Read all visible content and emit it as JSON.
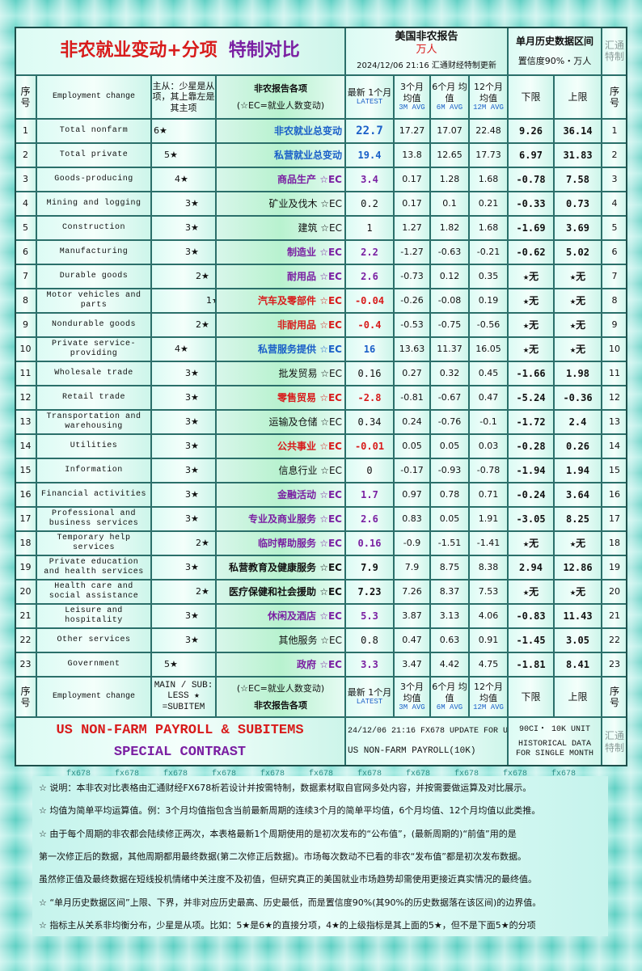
{
  "header": {
    "title_main": "非农就业变动+分项",
    "title_accent": "特制对比",
    "report_title": "美国非农报告",
    "report_unit": "万人",
    "timestamp": "2024/12/06 21:16 汇通财经特制更新",
    "range_title": "单月历史数据区间",
    "range_subtitle": "置信度90%・万人",
    "side_label": "汇通特制"
  },
  "columns": {
    "no": "序号",
    "en": "Employment change",
    "stars": "主从：少星是从项，其上靠左是其主项",
    "stars_footer": "MAIN / SUB: LESS ★ =SUBITEM",
    "zh": "非农报告各项",
    "zh_note": "(☆EC=就业人数变动)",
    "latest": "最新 1个月",
    "latest_en": "LATEST",
    "m3": "3个月 均值",
    "m3_en": "3M AVG",
    "m6": "6个月 均值",
    "m6_en": "6M AVG",
    "m12": "12个月 均值",
    "m12_en": "12M AVG",
    "low": "下限",
    "high": "上限"
  },
  "rows": [
    {
      "no": 1,
      "en": "Total nonfarm",
      "stars": "6★",
      "zh": "非农就业总变动",
      "latest": 22.7,
      "m3": 17.27,
      "m6": 17.07,
      "m12": 22.48,
      "low": 9.26,
      "high": 36.14,
      "style": "blue"
    },
    {
      "no": 2,
      "en": "Total private",
      "stars": "5★",
      "zh": "私营就业总变动",
      "latest": 19.4,
      "m3": 13.8,
      "m6": 12.65,
      "m12": 17.73,
      "low": 6.97,
      "high": 31.83,
      "style": "blue"
    },
    {
      "no": 3,
      "en": "Goods-producing",
      "stars": "4★",
      "zh": "商品生产 ☆EC",
      "latest": 3.4,
      "m3": 0.17,
      "m6": 1.28,
      "m12": 1.68,
      "low": -0.78,
      "high": 7.58,
      "style": "purple"
    },
    {
      "no": 4,
      "en": "Mining and logging",
      "stars": "3★",
      "zh": "矿业及伐木 ☆EC",
      "latest": 0.2,
      "m3": 0.17,
      "m6": 0.1,
      "m12": 0.21,
      "low": -0.33,
      "high": 0.73,
      "style": "plain"
    },
    {
      "no": 5,
      "en": "Construction",
      "stars": "3★",
      "zh": "建筑 ☆EC",
      "latest": 1,
      "m3": 1.27,
      "m6": 1.82,
      "m12": 1.68,
      "low": -1.69,
      "high": 3.69,
      "style": "plain"
    },
    {
      "no": 6,
      "en": "Manufacturing",
      "stars": "3★",
      "zh": "制造业 ☆EC",
      "latest": 2.2,
      "m3": -1.27,
      "m6": -0.63,
      "m12": -0.21,
      "low": -0.62,
      "high": 5.02,
      "style": "purple"
    },
    {
      "no": 7,
      "en": "Durable goods",
      "stars": "2★",
      "zh": "耐用品 ☆EC",
      "latest": 2.6,
      "m3": -0.73,
      "m6": 0.12,
      "m12": 0.35,
      "low": "★无",
      "high": "★无",
      "style": "purple"
    },
    {
      "no": 8,
      "en": "Motor vehicles and parts",
      "stars": "1★",
      "zh": "汽车及零部件 ☆EC",
      "latest": -0.04,
      "m3": -0.26,
      "m6": -0.08,
      "m12": 0.19,
      "low": "★无",
      "high": "★无",
      "style": "red"
    },
    {
      "no": 9,
      "en": "Nondurable goods",
      "stars": "2★",
      "zh": "非耐用品 ☆EC",
      "latest": -0.4,
      "m3": -0.53,
      "m6": -0.75,
      "m12": -0.56,
      "low": "★无",
      "high": "★无",
      "style": "red"
    },
    {
      "no": 10,
      "en": "Private service-providing",
      "stars": "4★",
      "zh": "私营服务提供 ☆EC",
      "latest": 16,
      "m3": 13.63,
      "m6": 11.37,
      "m12": 16.05,
      "low": "★无",
      "high": "★无",
      "style": "blue"
    },
    {
      "no": 11,
      "en": "Wholesale trade",
      "stars": "3★",
      "zh": "批发贸易 ☆EC",
      "latest": 0.16,
      "m3": 0.27,
      "m6": 0.32,
      "m12": 0.45,
      "low": -1.66,
      "high": 1.98,
      "style": "plain"
    },
    {
      "no": 12,
      "en": "Retail trade",
      "stars": "3★",
      "zh": "零售贸易 ☆EC",
      "latest": -2.8,
      "m3": -0.81,
      "m6": -0.67,
      "m12": 0.47,
      "low": -5.24,
      "high": -0.36,
      "style": "red"
    },
    {
      "no": 13,
      "en": "Transportation and warehousing",
      "stars": "3★",
      "zh": "运输及仓储 ☆EC",
      "latest": 0.34,
      "m3": 0.24,
      "m6": -0.76,
      "m12": -0.1,
      "low": -1.72,
      "high": 2.4,
      "style": "plain"
    },
    {
      "no": 14,
      "en": "Utilities",
      "stars": "3★",
      "zh": "公共事业 ☆EC",
      "latest": -0.01,
      "m3": 0.05,
      "m6": 0.05,
      "m12": 0.03,
      "low": -0.28,
      "high": 0.26,
      "style": "red"
    },
    {
      "no": 15,
      "en": "Information",
      "stars": "3★",
      "zh": "信息行业 ☆EC",
      "latest": 0,
      "m3": -0.17,
      "m6": -0.93,
      "m12": -0.78,
      "low": -1.94,
      "high": 1.94,
      "style": "plain"
    },
    {
      "no": 16,
      "en": "Financial activities",
      "stars": "3★",
      "zh": "金融活动 ☆EC",
      "latest": 1.7,
      "m3": 0.97,
      "m6": 0.78,
      "m12": 0.71,
      "low": -0.24,
      "high": 3.64,
      "style": "purple"
    },
    {
      "no": 17,
      "en": "Professional and business services",
      "stars": "3★",
      "zh": "专业及商业服务 ☆EC",
      "latest": 2.6,
      "m3": 0.83,
      "m6": 0.05,
      "m12": 1.91,
      "low": -3.05,
      "high": 8.25,
      "style": "purple"
    },
    {
      "no": 18,
      "en": "Temporary help services",
      "stars": "2★",
      "zh": "临时帮助服务 ☆EC",
      "latest": 0.16,
      "m3": -0.9,
      "m6": -1.51,
      "m12": -1.41,
      "low": "★无",
      "high": "★无",
      "style": "purple"
    },
    {
      "no": 19,
      "en": "Private education and health services",
      "stars": "3★",
      "zh": "私营教育及健康服务 ☆EC",
      "latest": 7.9,
      "m3": 7.9,
      "m6": 8.75,
      "m12": 8.38,
      "low": 2.94,
      "high": 12.86,
      "style": "strong"
    },
    {
      "no": 20,
      "en": "Health care and social assistance",
      "stars": "2★",
      "zh": "医疗保健和社会援助 ☆EC",
      "latest": 7.23,
      "m3": 7.26,
      "m6": 8.37,
      "m12": 7.53,
      "low": "★无",
      "high": "★无",
      "style": "strong"
    },
    {
      "no": 21,
      "en": "Leisure and hospitality",
      "stars": "3★",
      "zh": "休闲及酒店 ☆EC",
      "latest": 5.3,
      "m3": 3.87,
      "m6": 3.13,
      "m12": 4.06,
      "low": -0.83,
      "high": 11.43,
      "style": "purple"
    },
    {
      "no": 22,
      "en": "Other services",
      "stars": "3★",
      "zh": "其他服务 ☆EC",
      "latest": 0.8,
      "m3": 0.47,
      "m6": 0.63,
      "m12": 0.91,
      "low": -1.45,
      "high": 3.05,
      "style": "plain"
    },
    {
      "no": 23,
      "en": "Government",
      "stars": "5★",
      "zh": "政府 ☆EC",
      "latest": 3.3,
      "m3": 3.47,
      "m6": 4.42,
      "m12": 4.75,
      "low": -1.81,
      "high": 8.41,
      "style": "purple"
    }
  ],
  "banner": {
    "title_line1": "US NON-FARM PAYROLL & SUBITEMS",
    "title_line2": "SPECIAL CONTRAST",
    "update": "24/12/06 21:16 FX678 UPDATE FOR U",
    "report": "US NON-FARM PAYROLL(10K)",
    "unit": "90CI・ 10K UNIT",
    "range": "HISTORICAL DATA FOR SINGLE MONTH",
    "side_label": "汇通特制"
  },
  "watermark": "fx678",
  "notes": [
    "☆ 说明：本非农对比表格由汇通财经FX678析若设计并按需特制，数据素材取自官网多处内容，并按需要做运算及对比展示。",
    "☆ 均值为简单平均运算值。例：3个月均值指包含当前最新周期的连续3个月的简单平均值，6个月均值、12个月均值以此类推。",
    "☆ 由于每个周期的非农都会陆续修正两次，本表格最新1个周期使用的是初次发布的“公布值”，(最新周期的)“前值”用的是",
    "第一次修正后的数据，其他周期都用最终数据(第二次修正后数据)。市场每次数动不已看的非农“发布值”都是初次发布数据。",
    "虽然修正值及最终数据在短线投机情绪中关注度不及初值，但研究真正的美国就业市场趋势却需使用更接近真实情况的最终值。",
    "☆ “单月历史数据区间”上限、下界，并非对应历史最高、历史最低，而是置信度90%(其90%的历史数据落在该区间)的边界值。",
    "☆ 指标主从关系非均衡分布，少星是从项。比如：5★是6★的直接分项，4★的上级指标是其上面的5★，但不是下面5★的分项"
  ]
}
